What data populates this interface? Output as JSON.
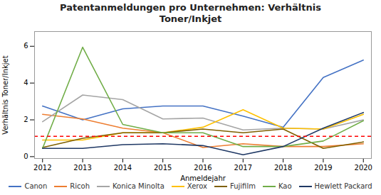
{
  "chart_data": {
    "type": "line",
    "title": "Patentanmeldungen pro Unternehmen: Verhältnis\nToner/Inkjet",
    "xlabel": "Anmeldejahr",
    "ylabel": "Verhältnis Toner/Inkjet",
    "x": [
      2012,
      2013,
      2014,
      2015,
      2016,
      2017,
      2018,
      2019,
      2020
    ],
    "series": [
      {
        "name": "Canon",
        "color": "#4472C4",
        "values": [
          2.75,
          2.0,
          2.6,
          2.75,
          2.75,
          2.2,
          1.6,
          4.3,
          5.25
        ]
      },
      {
        "name": "Ricoh",
        "color": "#ED7D31",
        "values": [
          2.3,
          2.05,
          1.55,
          1.3,
          0.5,
          0.7,
          0.55,
          0.55,
          0.7
        ]
      },
      {
        "name": "Konica Minolta",
        "color": "#A5A5A5",
        "values": [
          1.9,
          3.35,
          3.1,
          2.05,
          2.1,
          1.45,
          1.55,
          1.5,
          2.0
        ]
      },
      {
        "name": "Xerox",
        "color": "#FFC000",
        "values": [
          0.9,
          0.9,
          1.3,
          1.3,
          1.6,
          2.55,
          1.55,
          1.5,
          2.3
        ]
      },
      {
        "name": "Fujifilm",
        "color": "#7F6000",
        "values": [
          0.5,
          1.0,
          1.3,
          1.3,
          1.5,
          1.3,
          1.5,
          0.45,
          0.8
        ]
      },
      {
        "name": "Kao",
        "color": "#70AD47",
        "values": [
          0.45,
          5.95,
          1.75,
          1.3,
          1.3,
          0.55,
          0.55,
          0.85,
          1.95
        ]
      },
      {
        "name": "Hewlett Packard",
        "color": "#1F3864",
        "values": [
          0.45,
          0.45,
          0.65,
          0.7,
          0.6,
          0.1,
          0.55,
          1.55,
          2.4
        ]
      }
    ],
    "reference_line": {
      "value": 1.1,
      "color": "#FF0000",
      "line_style": "dashed"
    },
    "xlim": [
      2011.8,
      2020.2
    ],
    "xticks": [
      2012,
      2013,
      2014,
      2015,
      2016,
      2017,
      2018,
      2019,
      2020
    ],
    "ylim": [
      -0.1,
      6.8
    ],
    "yticks": [
      0,
      2,
      4,
      6
    ],
    "grid": false,
    "legend": "bottom"
  }
}
